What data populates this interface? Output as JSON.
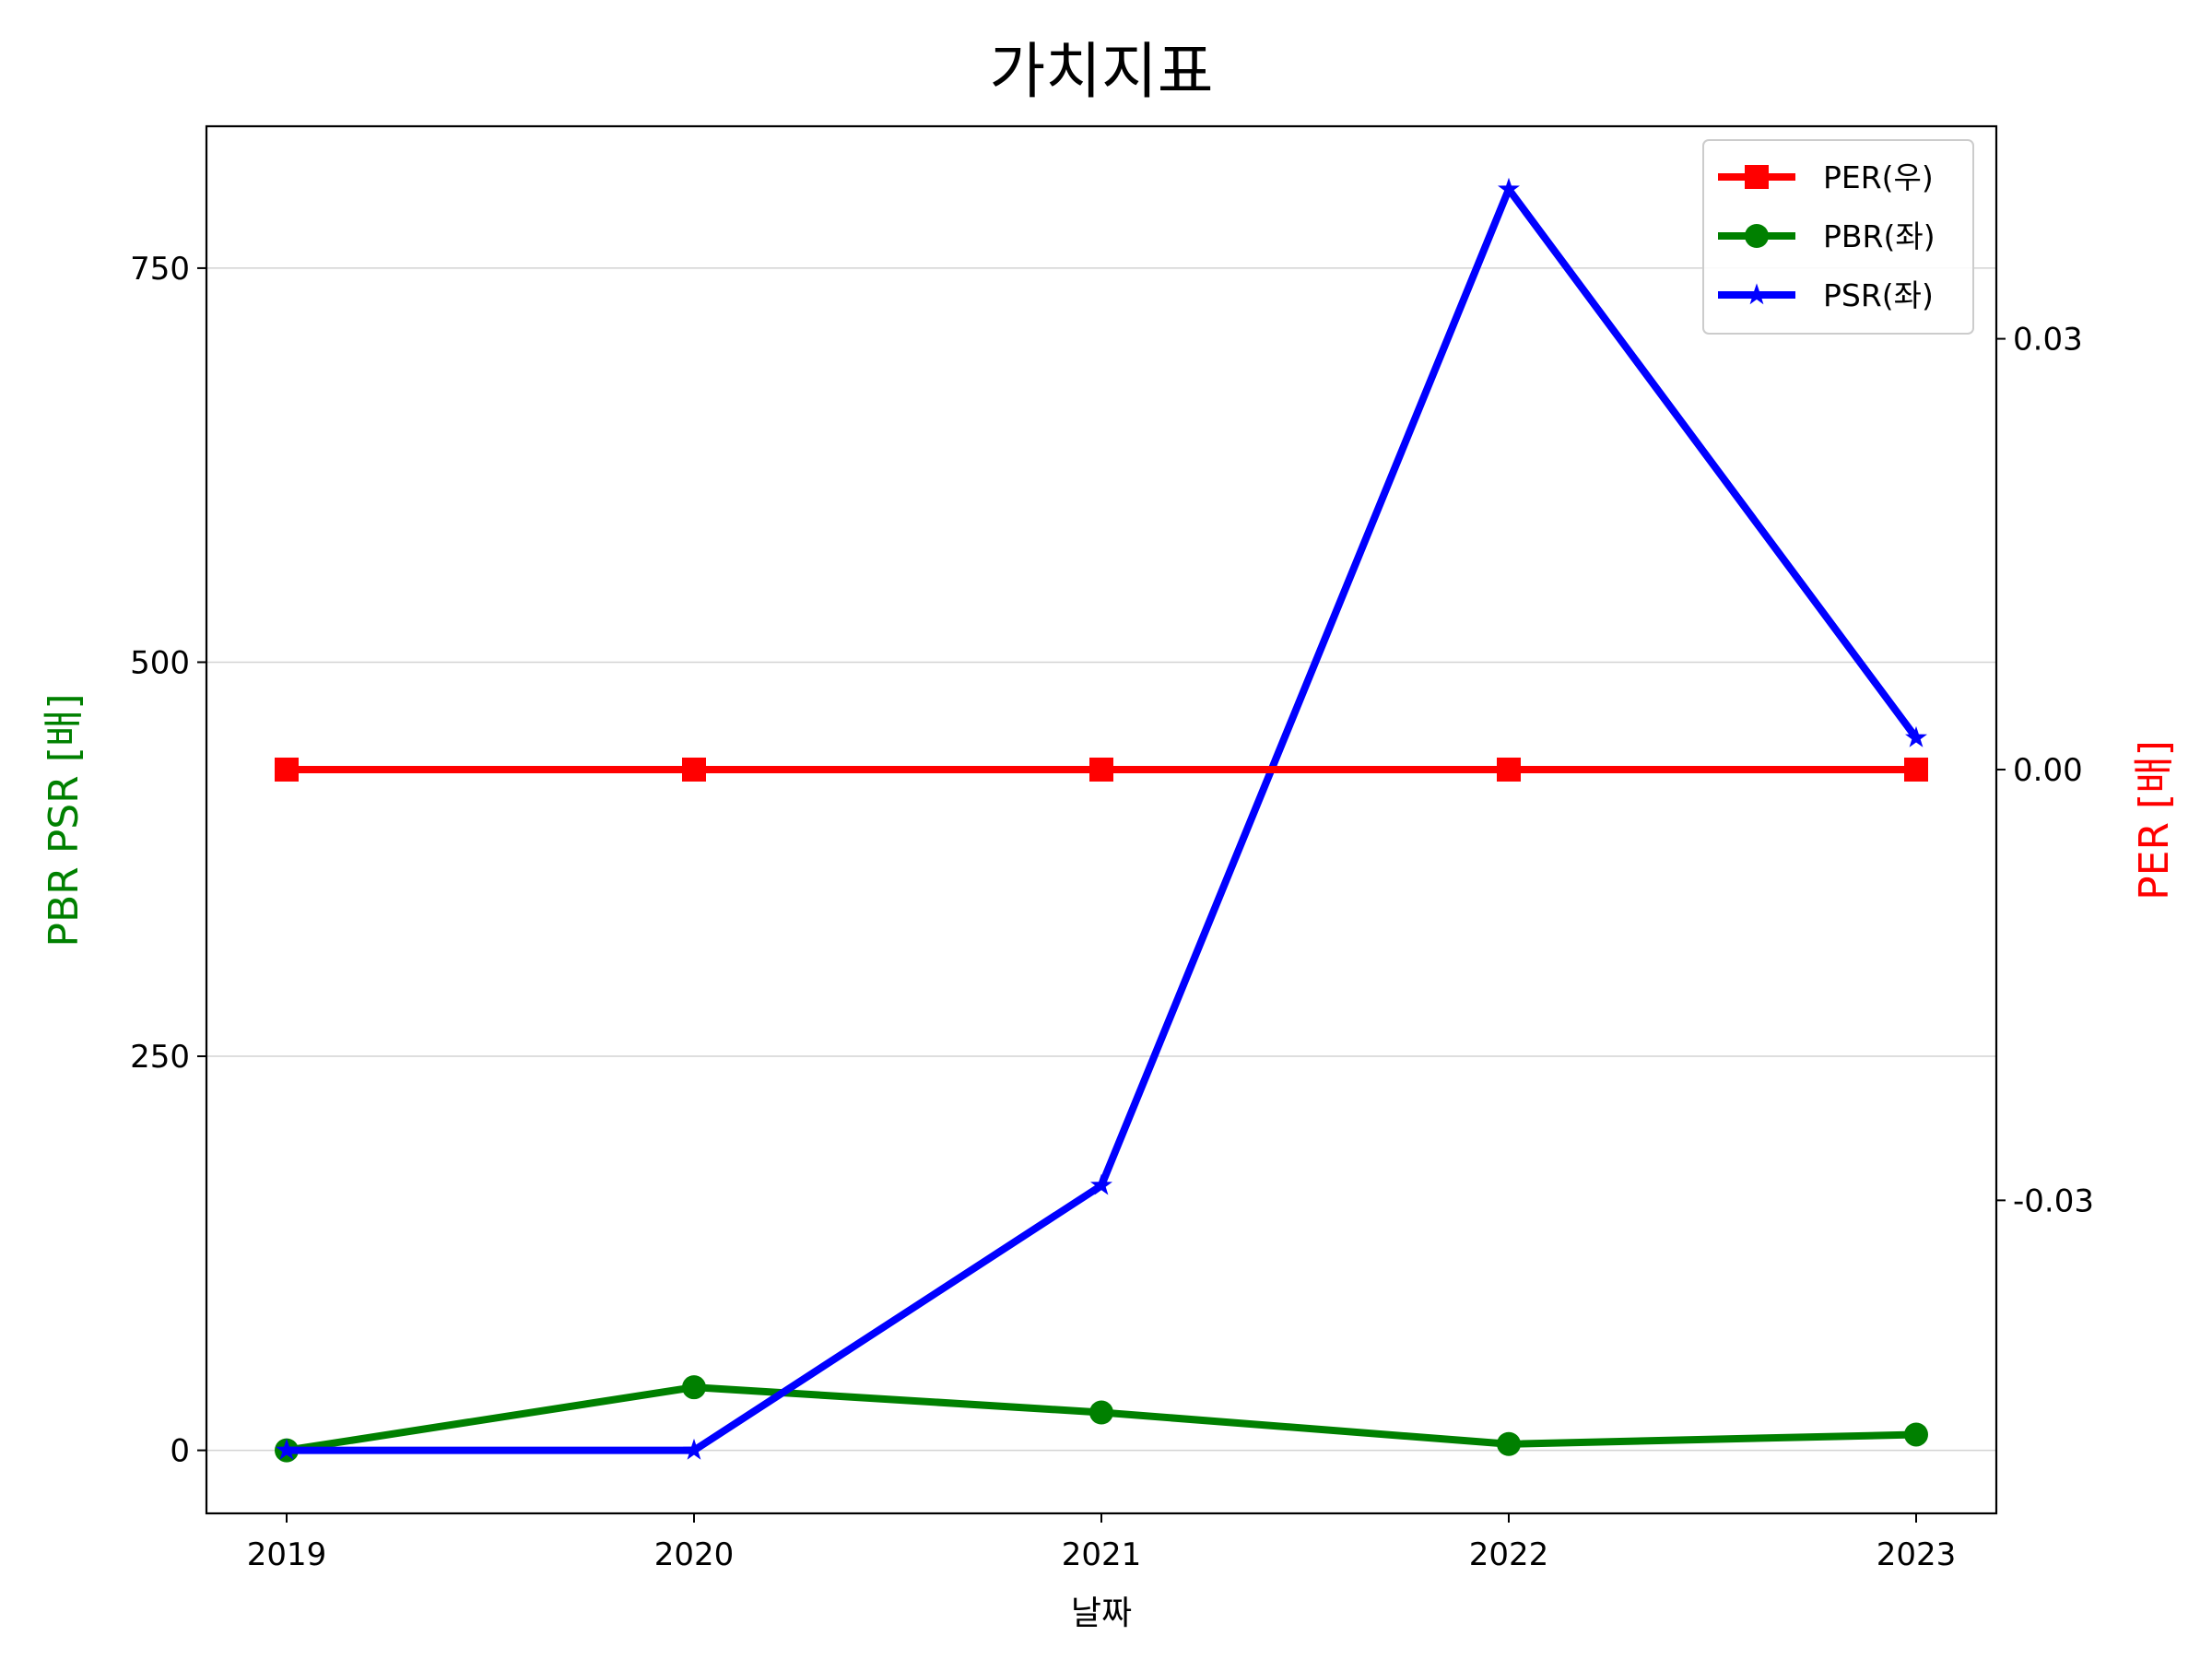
{
  "chart_data": {
    "type": "line",
    "title": "가치지표",
    "xlabel": "날짜",
    "ylabel_left": "PBR PSR [배]",
    "ylabel_right": "PER [배]",
    "categories": [
      "2019",
      "2020",
      "2021",
      "2022",
      "2023"
    ],
    "left_yticks": [
      0,
      250,
      500,
      750
    ],
    "left_ylim": [
      -40,
      840
    ],
    "right_yticks": [
      -0.03,
      0.0,
      0.03
    ],
    "right_ytick_labels": [
      "-0.03",
      "0.00",
      "0.03"
    ],
    "right_ylim": [
      -0.0518,
      0.0448
    ],
    "grid": "horizontal",
    "legend_position": "top-right",
    "series": [
      {
        "name": "PER(우)",
        "axis": "right",
        "color": "#ff0000",
        "marker": "square",
        "values": [
          0,
          0,
          0,
          0,
          0
        ]
      },
      {
        "name": "PBR(좌)",
        "axis": "left",
        "color": "#008000",
        "marker": "circle",
        "values": [
          0,
          40,
          24,
          4,
          10
        ]
      },
      {
        "name": "PSR(좌)",
        "axis": "left",
        "color": "#0000ff",
        "marker": "star",
        "values": [
          0,
          0,
          168,
          800,
          452
        ]
      }
    ]
  }
}
